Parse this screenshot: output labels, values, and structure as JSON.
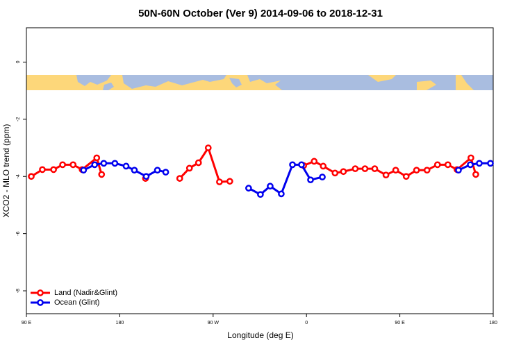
{
  "chart_data": {
    "type": "line",
    "title": "50N-60N October (Ver 9)   2014-09-06 to 2018-12-31",
    "x_label": "Longitude (deg E)",
    "y_label": "XCO2 - MLO trend (ppm)",
    "xlim": [
      90,
      540
    ],
    "xticks": [
      {
        "value": 90,
        "label": "90 E"
      },
      {
        "value": 180,
        "label": "180"
      },
      {
        "value": 270,
        "label": "90 W"
      },
      {
        "value": 360,
        "label": "0"
      },
      {
        "value": 450,
        "label": "90 E"
      },
      {
        "value": 540,
        "label": "180"
      }
    ],
    "ylim": [
      -8.8,
      1.2
    ],
    "yticks": [
      0,
      -2,
      -4,
      -6,
      -8
    ],
    "legend": "bottom-left",
    "series": [
      {
        "name": "Land (Nadir&Glint)",
        "color": "#ff0000",
        "x": [
          94.7,
          105.4,
          116.2,
          124.9,
          135.0,
          143.7,
          157.8,
          162.5,
          null,
          204.8,
          null,
          237.8,
          247.2,
          255.9,
          265.3,
          276.1,
          286.1,
          null,
          357.3,
          367.4,
          376.1,
          387.5,
          395.6,
          407.0,
          416.4,
          425.8,
          436.6,
          446.0,
          456.1,
          466.1,
          476.2,
          486.3,
          496.3,
          505.1,
          518.5,
          523.2
        ],
        "values": [
          -4.0,
          -3.76,
          -3.76,
          -3.59,
          -3.59,
          -3.76,
          -3.35,
          -3.93,
          null,
          -4.07,
          null,
          -4.07,
          -3.71,
          -3.52,
          -3.0,
          -4.19,
          -4.17,
          null,
          -3.62,
          -3.47,
          -3.64,
          -3.88,
          -3.83,
          -3.73,
          -3.73,
          -3.73,
          -3.95,
          -3.78,
          -4.0,
          -3.78,
          -3.78,
          -3.59,
          -3.59,
          -3.76,
          -3.35,
          -3.93
        ]
      },
      {
        "name": "Ocean (Glint)",
        "color": "#0000ee",
        "x": [
          145.1,
          155.8,
          164.6,
          175.3,
          186.1,
          194.1,
          205.5,
          216.3,
          224.3,
          null,
          304.2,
          315.6,
          325.0,
          335.7,
          346.5,
          355.2,
          363.9,
          375.3,
          null,
          506.5,
          517.9,
          526.6,
          537.3
        ],
        "values": [
          -3.78,
          -3.59,
          -3.54,
          -3.54,
          -3.64,
          -3.78,
          -4.0,
          -3.78,
          -3.85,
          null,
          -4.41,
          -4.63,
          -4.34,
          -4.61,
          -3.59,
          -3.59,
          -4.12,
          -4.02,
          null,
          -3.78,
          -3.59,
          -3.54,
          -3.54
        ]
      }
    ]
  }
}
